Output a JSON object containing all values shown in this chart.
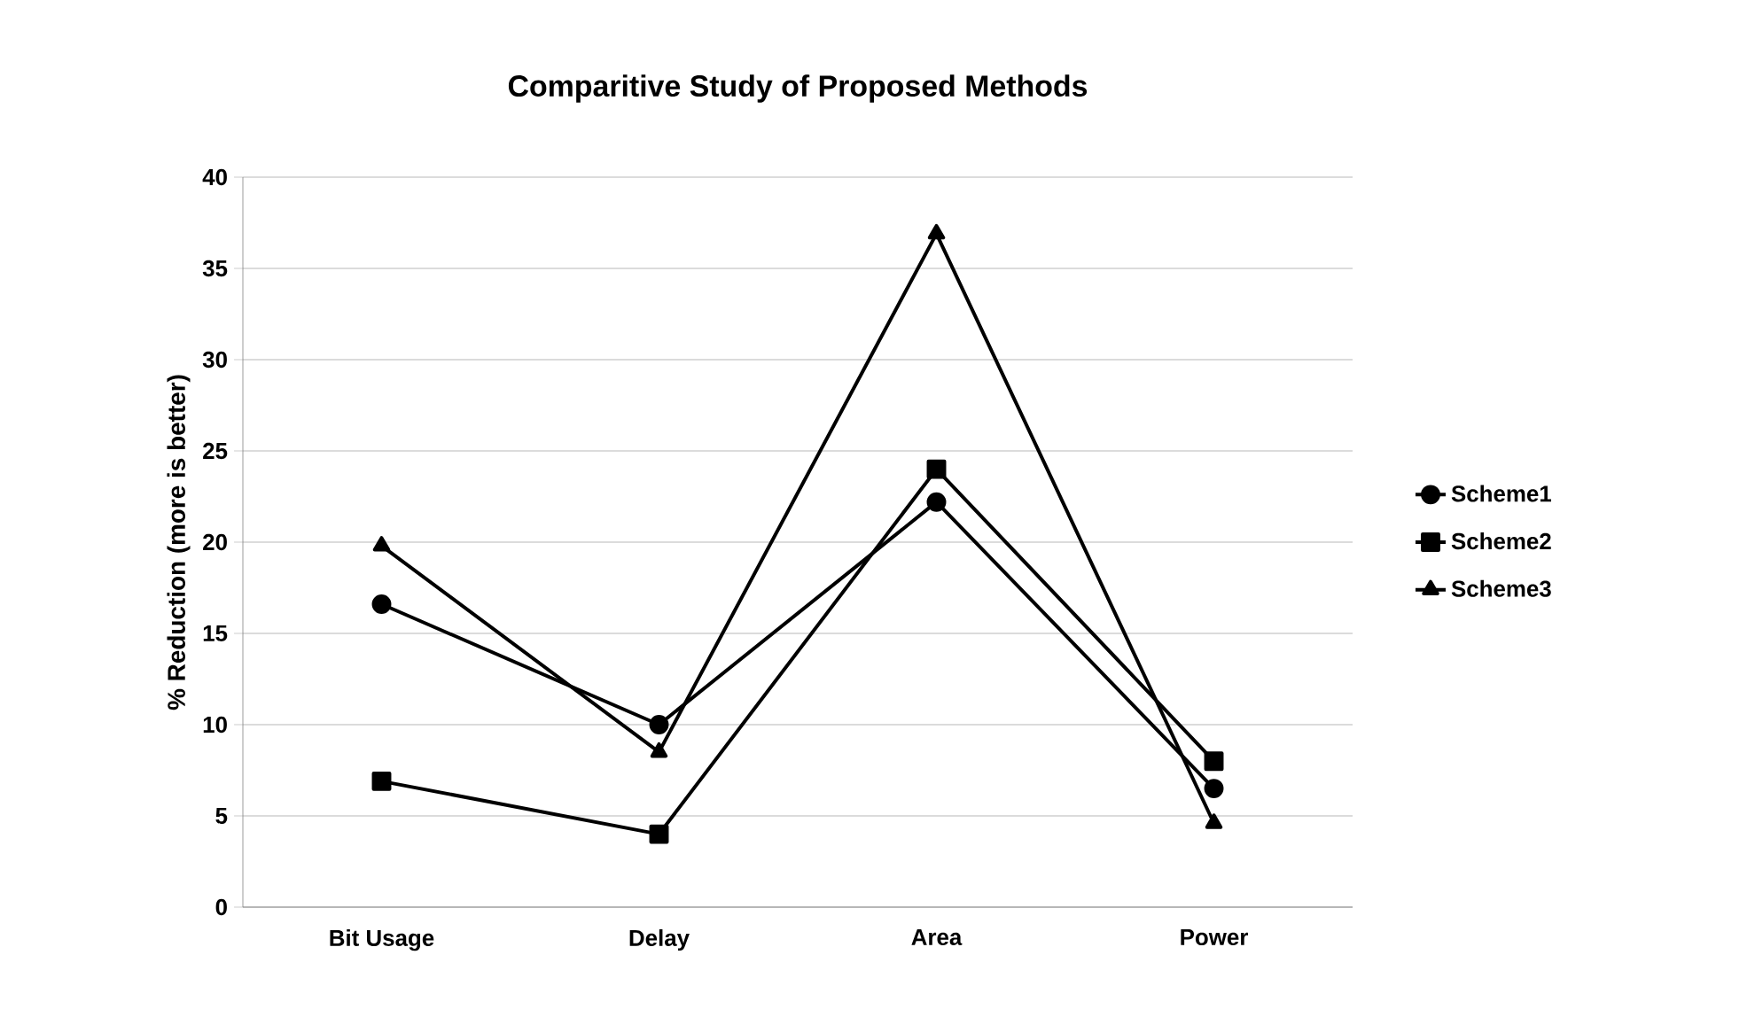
{
  "chart_data": {
    "type": "line",
    "title": "Comparitive Study of Proposed Methods",
    "ylabel": "% Reduction (more is better)",
    "categories": [
      "Bit Usage",
      "Delay",
      "Area",
      "Power"
    ],
    "series": [
      {
        "name": "Scheme1",
        "color": "#000000",
        "marker": "circle",
        "values": [
          16.6,
          10,
          22.2,
          6.5
        ]
      },
      {
        "name": "Scheme2",
        "color": "#000000",
        "marker": "square",
        "values": [
          6.9,
          4,
          24,
          8
        ]
      },
      {
        "name": "Scheme3",
        "color": "#000000",
        "marker": "triangle",
        "values": [
          19.8,
          8.5,
          36.9,
          4.6
        ]
      }
    ],
    "ylim": [
      0,
      40
    ],
    "yticks": [
      0,
      5,
      10,
      15,
      20,
      25,
      30,
      35,
      40
    ],
    "grid": "y",
    "legend": "right",
    "line_style": "solid"
  }
}
